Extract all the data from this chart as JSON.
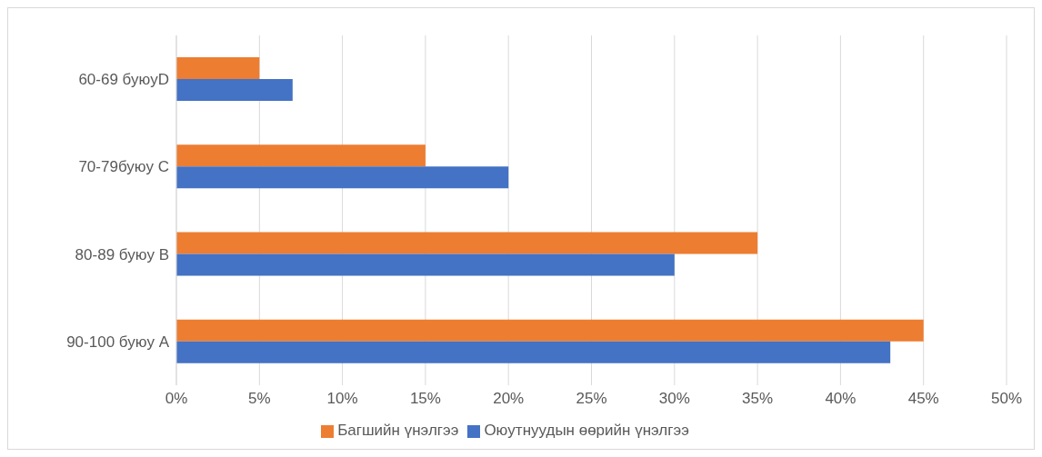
{
  "chart_data": {
    "type": "bar",
    "orientation": "horizontal",
    "categories": [
      "60-69 буюуD",
      "70-79буюу C",
      "80-89 буюу B",
      "90-100 буюу A"
    ],
    "series": [
      {
        "name": "Багшийн үнэлгээ",
        "color": "#ed7d31",
        "values": [
          5,
          15,
          35,
          45
        ]
      },
      {
        "name": "Оюутнуудын өөрийн үнэлгээ",
        "color": "#4472c4",
        "values": [
          7,
          20,
          30,
          43
        ]
      }
    ],
    "xlim": [
      0,
      50
    ],
    "xticks": [
      {
        "value": 0,
        "label": "0%"
      },
      {
        "value": 5,
        "label": "5%"
      },
      {
        "value": 10,
        "label": "10%"
      },
      {
        "value": 15,
        "label": "15%"
      },
      {
        "value": 20,
        "label": "20%"
      },
      {
        "value": 25,
        "label": "25%"
      },
      {
        "value": 30,
        "label": "30%"
      },
      {
        "value": 35,
        "label": "35%"
      },
      {
        "value": 40,
        "label": "40%"
      },
      {
        "value": 45,
        "label": "45%"
      },
      {
        "value": 50,
        "label": "50%"
      }
    ],
    "grid": "x",
    "legend": "bottom"
  }
}
